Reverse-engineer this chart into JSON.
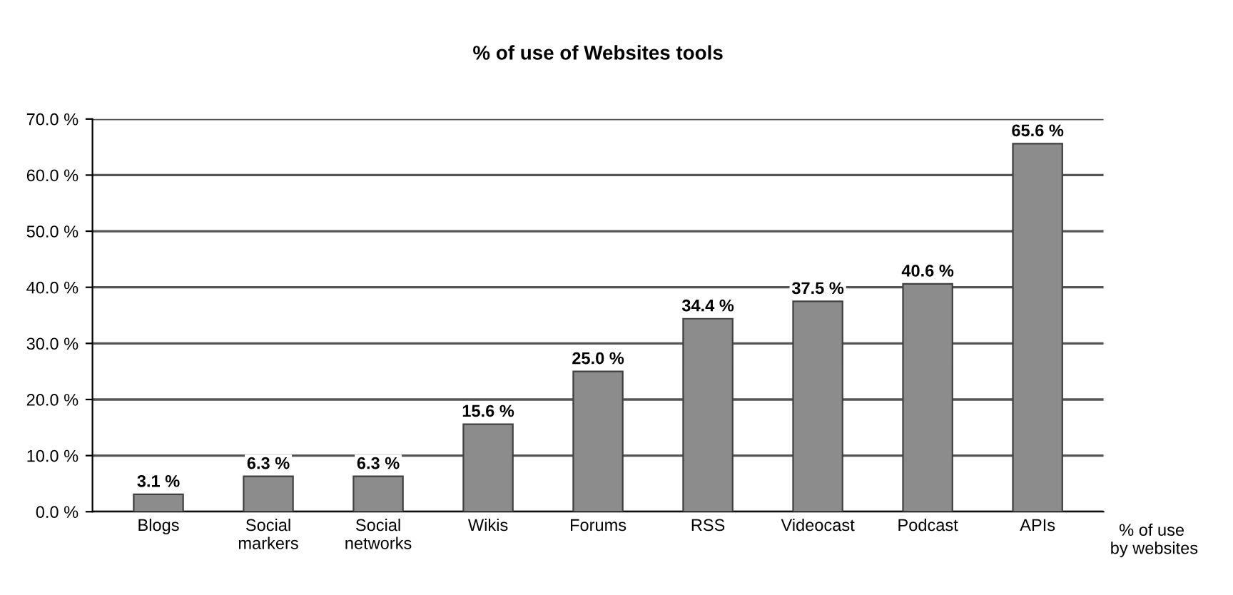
{
  "chart_data": {
    "type": "bar",
    "title": "% of use of Websites tools",
    "xlabel": "% of use by websites",
    "categories": [
      "Blogs",
      "Social markers",
      "Social networks",
      "Wikis",
      "Forums",
      "RSS",
      "Videocast",
      "Podcast",
      "APIs"
    ],
    "values": [
      3.1,
      6.3,
      6.3,
      15.6,
      25.0,
      34.4,
      37.5,
      40.6,
      65.6
    ],
    "value_labels": [
      "3.1 %",
      "6.3 %",
      "6.3 %",
      "15.6 %",
      "25.0 %",
      "34.4 %",
      "37.5 %",
      "40.6 %",
      "65.6 %"
    ],
    "color": "#8c8c8c",
    "ylim": [
      0,
      70
    ],
    "yticks": [
      {
        "value": 0,
        "label": "0.0 %"
      },
      {
        "value": 10,
        "label": "10.0 %"
      },
      {
        "value": 20,
        "label": "20.0 %"
      },
      {
        "value": 30,
        "label": "30.0 %"
      },
      {
        "value": 40,
        "label": "40.0 %"
      },
      {
        "value": 50,
        "label": "50.0 %"
      },
      {
        "value": 60,
        "label": "60.0 %"
      },
      {
        "value": 70,
        "label": "70.0 %"
      }
    ],
    "grid": "y"
  }
}
